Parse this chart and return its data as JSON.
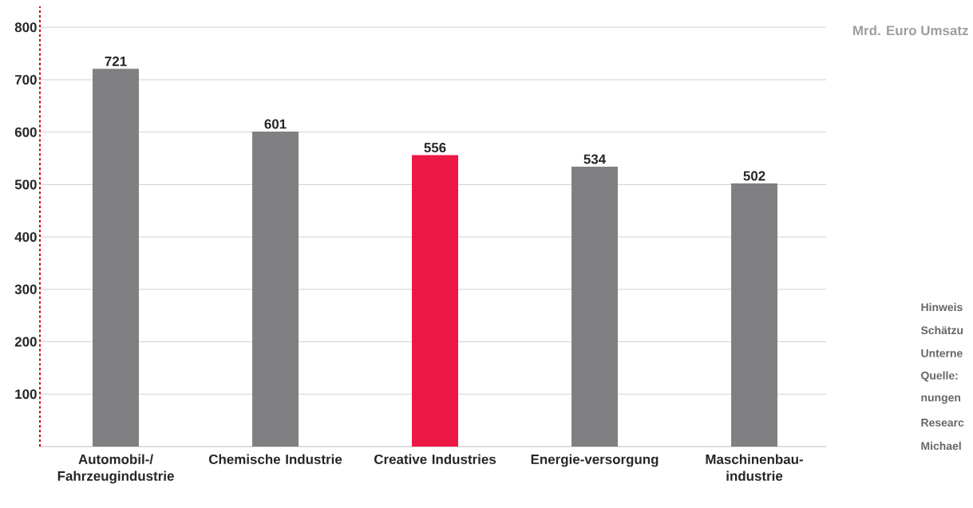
{
  "chart_data": {
    "type": "bar",
    "ylabel": "Mrd. Euro Umsatz",
    "categories": [
      "Automobil-/ Fahrzeugindustrie",
      "Chemische Industrie",
      "Creative Industries",
      "Energie-versorgung",
      "Maschinenbau-industrie"
    ],
    "values": [
      721,
      601,
      556,
      534,
      502
    ],
    "colors": [
      "#808082",
      "#808082",
      "#ee1846",
      "#808082",
      "#808082"
    ],
    "ylim": [
      0,
      840
    ],
    "yticks": [
      100,
      200,
      300,
      400,
      500,
      600,
      700,
      800
    ],
    "grid": "y",
    "data_labels": true,
    "annotations": [
      "Hinweis",
      "Schätzu",
      "Unterne",
      "Quelle:",
      "nungen",
      "Researc",
      "Michael"
    ]
  }
}
